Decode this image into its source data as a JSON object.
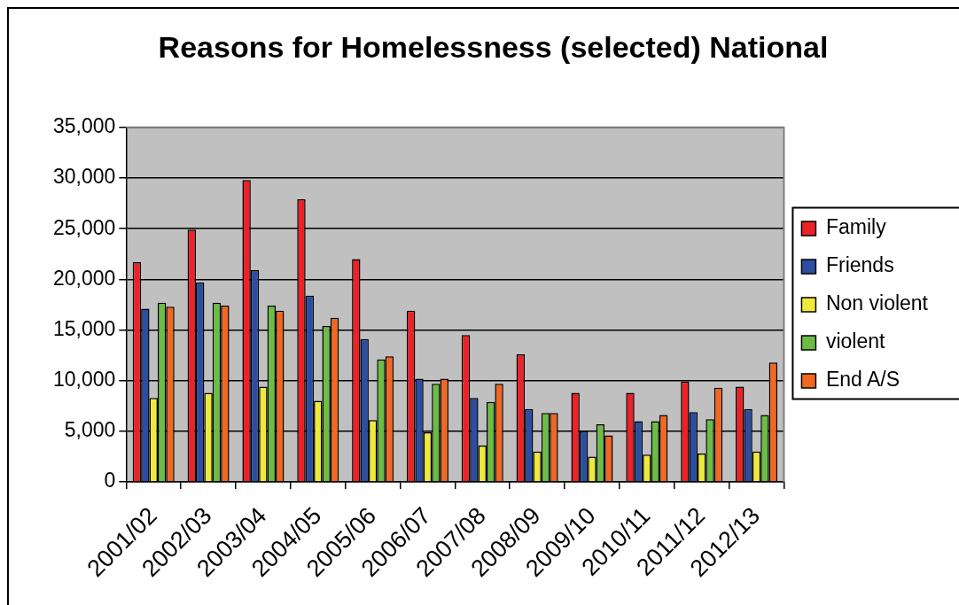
{
  "chart_data": {
    "type": "bar",
    "title": "Reasons for Homelessness (selected) National",
    "categories": [
      "2001/02",
      "2002/03",
      "2003/04",
      "2004/05",
      "2005/06",
      "2006/07",
      "2007/08",
      "2008/09",
      "2009/10",
      "2010/11",
      "2011/12",
      "2012/13"
    ],
    "series": [
      {
        "name": "Family",
        "color": "#ec2227",
        "values": [
          21700,
          24900,
          29800,
          27900,
          22000,
          16900,
          14500,
          12600,
          8800,
          8800,
          9900,
          9400
        ]
      },
      {
        "name": "Friends",
        "color": "#2b4ea2",
        "values": [
          17100,
          19700,
          20900,
          18400,
          14100,
          10200,
          8300,
          7200,
          5000,
          6000,
          6900,
          7200
        ]
      },
      {
        "name": "Non violent",
        "color": "#eeea3c",
        "values": [
          8300,
          8800,
          9400,
          8000,
          6100,
          4900,
          3600,
          3000,
          2500,
          2700,
          2800,
          3000
        ]
      },
      {
        "name": "violent",
        "color": "#6bbd45",
        "values": [
          17700,
          17700,
          17400,
          15400,
          12100,
          9700,
          7900,
          6800,
          5700,
          6000,
          6200,
          6600
        ]
      },
      {
        "name": "End A/S",
        "color": "#f26722",
        "values": [
          17300,
          17400,
          16900,
          16200,
          12400,
          10200,
          9700,
          6800,
          4600,
          6600,
          9300,
          11800
        ]
      }
    ],
    "ylim": [
      0,
      35000
    ],
    "yticks": [
      0,
      {
        "value": 5000,
        "label": "5,000"
      },
      {
        "value": 10000,
        "label": "10,000"
      },
      {
        "value": 15000,
        "label": "15,000"
      },
      {
        "value": 20000,
        "label": "20,000"
      },
      {
        "value": 25000,
        "label": "25,000"
      },
      {
        "value": 30000,
        "label": "30,000"
      },
      {
        "value": 35000,
        "label": "35,000"
      }
    ],
    "grid": "y",
    "legend": "right"
  }
}
